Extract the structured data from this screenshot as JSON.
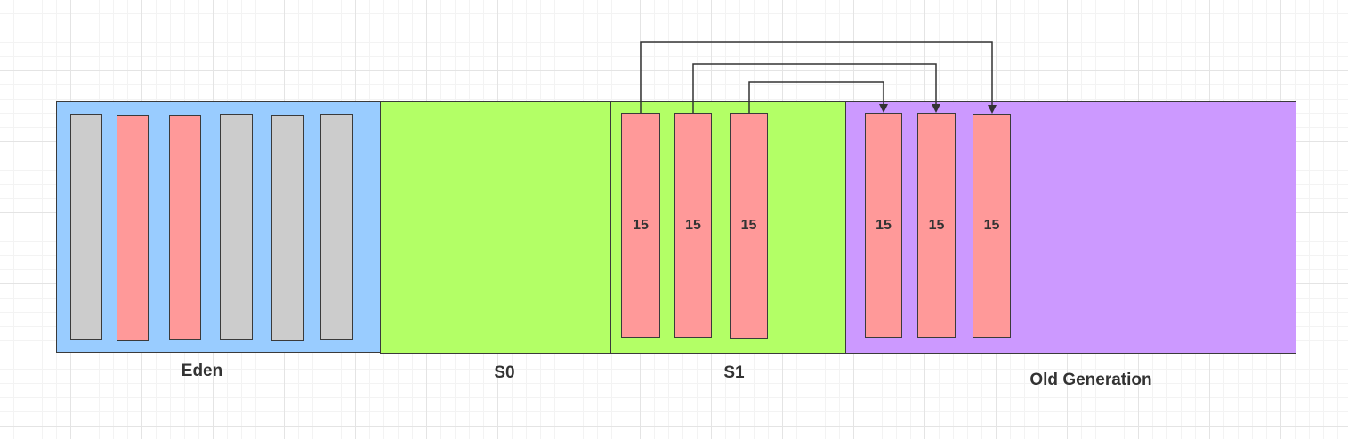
{
  "colors": {
    "eden": "#99ccff",
    "survivor": "#b3ff66",
    "old": "#cc99ff",
    "live_object": "#ff9999",
    "dead_object": "#cccccc",
    "line": "#333333"
  },
  "regions": {
    "eden": {
      "label": "Eden"
    },
    "s0": {
      "label": "S0"
    },
    "s1": {
      "label": "S1"
    },
    "old": {
      "label": "Old Generation"
    }
  },
  "eden_objects": [
    {
      "state": "dead"
    },
    {
      "state": "live"
    },
    {
      "state": "live"
    },
    {
      "state": "dead"
    },
    {
      "state": "dead"
    },
    {
      "state": "dead"
    }
  ],
  "s1_objects": [
    {
      "age": "15"
    },
    {
      "age": "15"
    },
    {
      "age": "15"
    }
  ],
  "old_objects": [
    {
      "age": "15"
    },
    {
      "age": "15"
    },
    {
      "age": "15"
    }
  ],
  "connectors": [
    {
      "from": "s1-object-1",
      "to": "old-object-3"
    },
    {
      "from": "s1-object-2",
      "to": "old-object-2"
    },
    {
      "from": "s1-object-3",
      "to": "old-object-1"
    }
  ]
}
